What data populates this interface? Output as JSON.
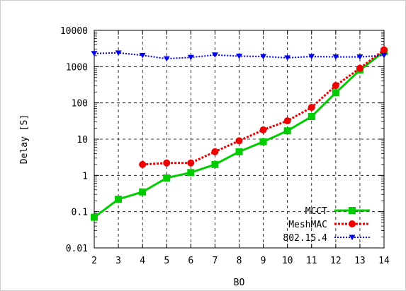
{
  "chart_data": {
    "type": "line",
    "xlabel": "BO",
    "ylabel": "Delay [S]",
    "yscale": "log",
    "xlim": [
      2,
      14
    ],
    "ylim": [
      0.01,
      10000
    ],
    "xticks": [
      2,
      3,
      4,
      5,
      6,
      7,
      8,
      9,
      10,
      11,
      12,
      13,
      14
    ],
    "yticks": [
      {
        "value": 0.01,
        "label": "0.01"
      },
      {
        "value": 0.1,
        "label": "0.1"
      },
      {
        "value": 1,
        "label": "1"
      },
      {
        "value": 10,
        "label": "10"
      },
      {
        "value": 100,
        "label": "100"
      },
      {
        "value": 1000,
        "label": "1000"
      },
      {
        "value": 10000,
        "label": "10000"
      }
    ],
    "grid": true,
    "legend_position": "bottom-right",
    "series": [
      {
        "name": "MCCT",
        "color": "#00cc00",
        "marker": "square",
        "line_style": "solid",
        "x": [
          2,
          3,
          4,
          5,
          6,
          7,
          8,
          9,
          10,
          11,
          12,
          13,
          14
        ],
        "y": [
          0.07,
          0.22,
          0.35,
          0.85,
          1.2,
          2.0,
          4.5,
          8.5,
          17,
          42,
          190,
          800,
          2600
        ]
      },
      {
        "name": "MeshMAC",
        "color": "#ee0000",
        "marker": "circle",
        "line_style": "dotted",
        "x": [
          4,
          5,
          6,
          7,
          8,
          9,
          10,
          11,
          12,
          13,
          14
        ],
        "y": [
          2.0,
          2.2,
          2.2,
          4.5,
          9,
          18,
          32,
          75,
          300,
          900,
          2900
        ]
      },
      {
        "name": "802.15.4",
        "color": "#0000ee",
        "marker": "triangle-down",
        "line_style": "dotted",
        "x": [
          2,
          3,
          4,
          5,
          6,
          7,
          8,
          9,
          10,
          11,
          12,
          13,
          14
        ],
        "y": [
          2300,
          2400,
          2050,
          1650,
          1800,
          2100,
          1950,
          1900,
          1750,
          1900,
          1850,
          1850,
          2050
        ]
      }
    ]
  }
}
